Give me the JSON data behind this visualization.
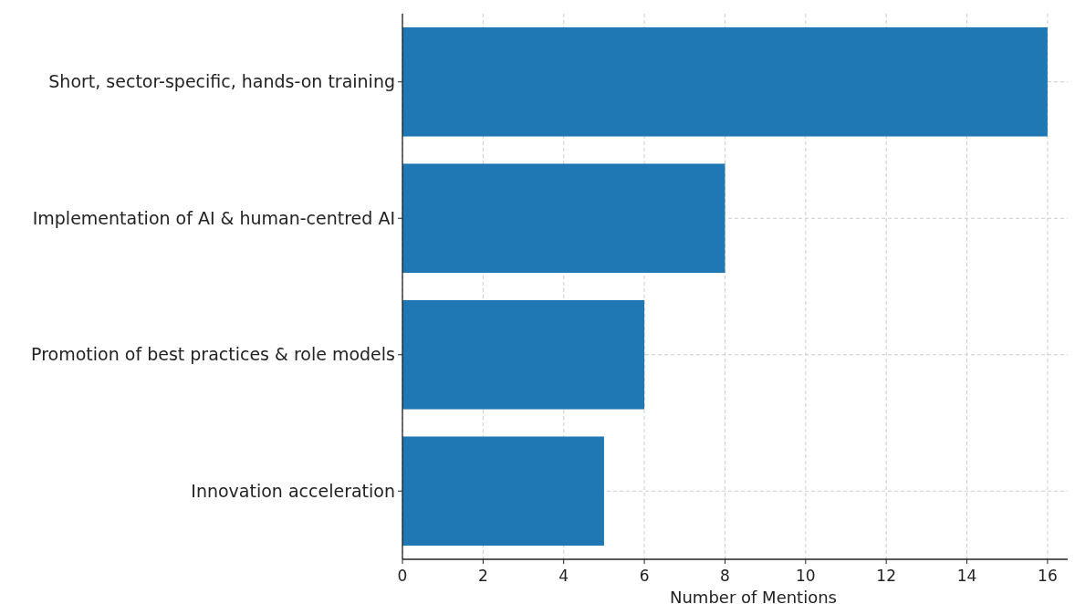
{
  "chart_data": {
    "type": "bar",
    "orientation": "horizontal",
    "categories": [
      "Short, sector-specific, hands-on training",
      "Implementation of AI & human-centred AI",
      "Promotion of best practices & role models",
      "Innovation acceleration"
    ],
    "values": [
      16,
      8,
      6,
      5
    ],
    "color": "#1f77b4",
    "xlabel": "Number of Mentions",
    "xlim": [
      0,
      16.5
    ],
    "xticks": [
      0,
      2,
      4,
      6,
      8,
      10,
      12,
      14,
      16
    ],
    "grid": true
  }
}
